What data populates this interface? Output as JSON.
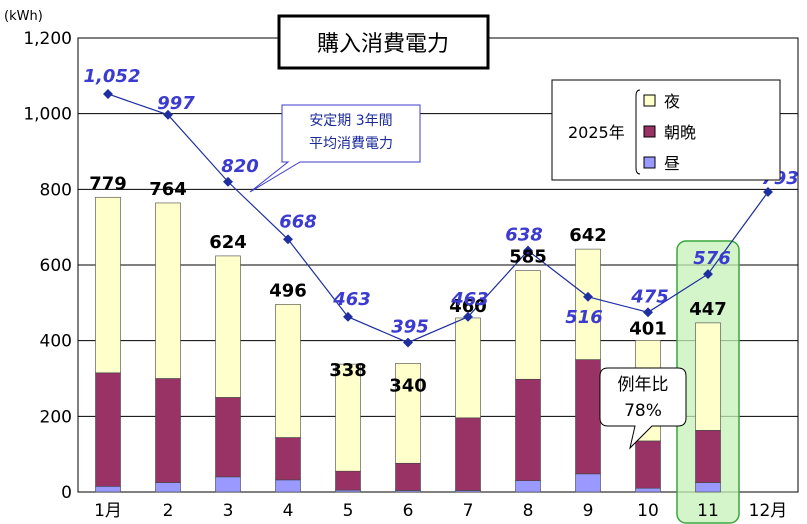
{
  "chart_data": {
    "type": "bar",
    "title": "購入消費電力",
    "unit_label": "(kWh)",
    "ylim": [
      0,
      1200
    ],
    "yticks": [
      0,
      200,
      400,
      600,
      800,
      1000,
      1200
    ],
    "ytick_labels": [
      "0",
      "200",
      "400",
      "600",
      "800",
      "1,000",
      "1,200"
    ],
    "categories": [
      "1月",
      "2",
      "3",
      "4",
      "5",
      "6",
      "7",
      "8",
      "9",
      "10",
      "11",
      "12月"
    ],
    "stacked": true,
    "legend": {
      "year": "2025年",
      "placement": "top-right",
      "entries": [
        "夜",
        "朝晩",
        "昼"
      ]
    },
    "series": [
      {
        "name": "昼",
        "color": "#9999ff",
        "values": [
          15,
          25,
          40,
          32,
          5,
          4,
          4,
          30,
          48,
          10,
          25,
          null
        ]
      },
      {
        "name": "朝晩",
        "color": "#993366",
        "values": [
          300,
          275,
          210,
          112,
          50,
          72,
          192,
          268,
          302,
          125,
          138,
          null
        ]
      },
      {
        "name": "夜",
        "color": "#ffffcc",
        "values": [
          464,
          464,
          374,
          352,
          283,
          264,
          264,
          287,
          292,
          266,
          284,
          null
        ]
      }
    ],
    "totals": [
      779,
      764,
      624,
      496,
      338,
      340,
      460,
      585,
      642,
      401,
      447,
      null
    ],
    "line": {
      "color": "#1f2f9f",
      "values": [
        1052,
        997,
        820,
        668,
        463,
        395,
        463,
        638,
        516,
        475,
        576,
        793
      ],
      "labels": [
        "1,052",
        "997",
        "820",
        "668",
        "463",
        "395",
        "463",
        "638",
        "516",
        "475",
        "576",
        "793"
      ]
    },
    "callout": {
      "line1": "安定期 3年間",
      "line2": "平均消費電力"
    },
    "bubble": {
      "line1": "例年比",
      "line2": "78%"
    },
    "highlight_category_index": 10
  }
}
